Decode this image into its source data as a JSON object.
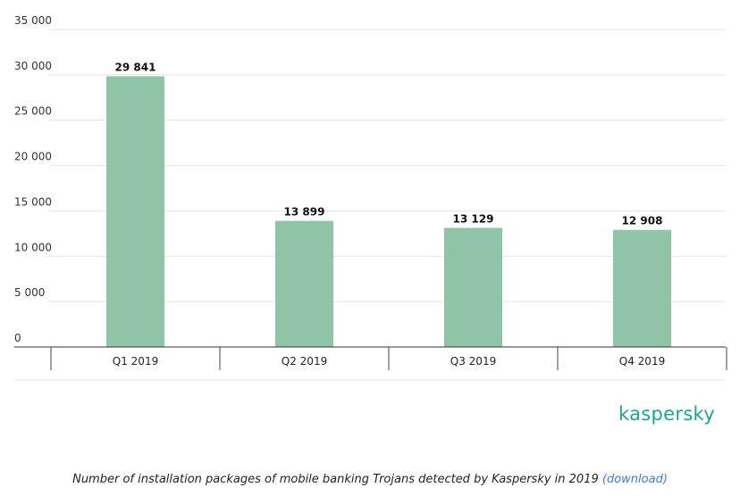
{
  "chart_data": {
    "type": "bar",
    "categories": [
      "Q1 2019",
      "Q2 2019",
      "Q3 2019",
      "Q4 2019"
    ],
    "values": [
      29841,
      13899,
      13129,
      12908
    ],
    "value_labels": [
      "29 841",
      "13 899",
      "13 129",
      "12 908"
    ],
    "yticks": [
      0,
      5000,
      10000,
      15000,
      20000,
      25000,
      30000,
      35000
    ],
    "ytick_labels": [
      "0",
      "5 000",
      "10 000",
      "15 000",
      "20 000",
      "25 000",
      "30 000",
      "35 000"
    ],
    "ylim": [
      0,
      35000
    ],
    "grid": true,
    "bar_color": "#8fc4a6"
  },
  "logo": {
    "text": "kaspersky",
    "color": "#1aa88c"
  },
  "caption": {
    "text": "Number of installation packages of mobile banking Trojans detected by Kaspersky in 2019",
    "link_text": "(download)",
    "link_color": "#3b7bd8"
  }
}
